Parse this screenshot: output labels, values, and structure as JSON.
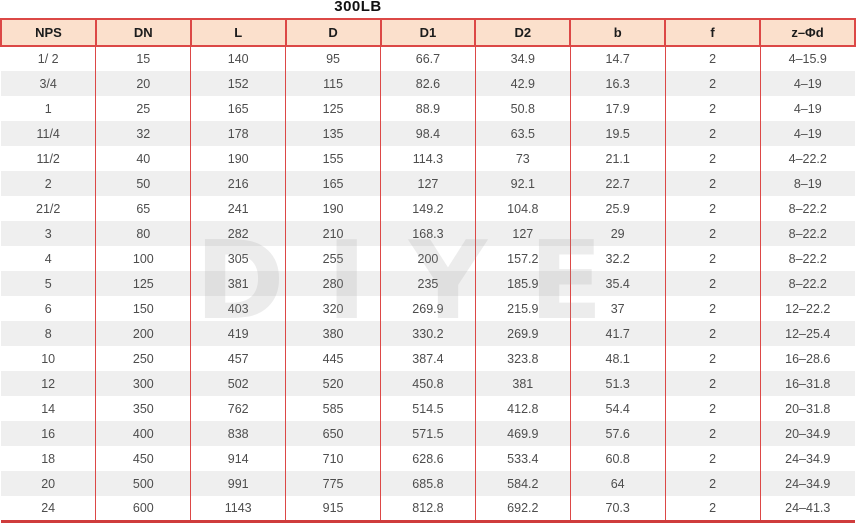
{
  "title": "300LB",
  "watermark": "DIYE",
  "colors": {
    "border_red": "#dc4846",
    "border_red_dark": "#cf3c3c",
    "header_bg": "#fbe0cc",
    "stripe_gray": "#efefef",
    "text_gray": "#4d4d4d"
  },
  "table": {
    "columns": [
      "NPS",
      "DN",
      "L",
      "D",
      "D1",
      "D2",
      "b",
      "f",
      "z–Φd"
    ],
    "rows": [
      [
        "1/ 2",
        "15",
        "140",
        "95",
        "66.7",
        "34.9",
        "14.7",
        "2",
        "4–15.9"
      ],
      [
        "3/4",
        "20",
        "152",
        "115",
        "82.6",
        "42.9",
        "16.3",
        "2",
        "4–19"
      ],
      [
        "1",
        "25",
        "165",
        "125",
        "88.9",
        "50.8",
        "17.9",
        "2",
        "4–19"
      ],
      [
        "11/4",
        "32",
        "178",
        "135",
        "98.4",
        "63.5",
        "19.5",
        "2",
        "4–19"
      ],
      [
        "11/2",
        "40",
        "190",
        "155",
        "114.3",
        "73",
        "21.1",
        "2",
        "4–22.2"
      ],
      [
        "2",
        "50",
        "216",
        "165",
        "127",
        "92.1",
        "22.7",
        "2",
        "8–19"
      ],
      [
        "21/2",
        "65",
        "241",
        "190",
        "149.2",
        "104.8",
        "25.9",
        "2",
        "8–22.2"
      ],
      [
        "3",
        "80",
        "282",
        "210",
        "168.3",
        "127",
        "29",
        "2",
        "8–22.2"
      ],
      [
        "4",
        "100",
        "305",
        "255",
        "200",
        "157.2",
        "32.2",
        "2",
        "8–22.2"
      ],
      [
        "5",
        "125",
        "381",
        "280",
        "235",
        "185.9",
        "35.4",
        "2",
        "8–22.2"
      ],
      [
        "6",
        "150",
        "403",
        "320",
        "269.9",
        "215.9",
        "37",
        "2",
        "12–22.2"
      ],
      [
        "8",
        "200",
        "419",
        "380",
        "330.2",
        "269.9",
        "41.7",
        "2",
        "12–25.4"
      ],
      [
        "10",
        "250",
        "457",
        "445",
        "387.4",
        "323.8",
        "48.1",
        "2",
        "16–28.6"
      ],
      [
        "12",
        "300",
        "502",
        "520",
        "450.8",
        "381",
        "51.3",
        "2",
        "16–31.8"
      ],
      [
        "14",
        "350",
        "762",
        "585",
        "514.5",
        "412.8",
        "54.4",
        "2",
        "20–31.8"
      ],
      [
        "16",
        "400",
        "838",
        "650",
        "571.5",
        "469.9",
        "57.6",
        "2",
        "20–34.9"
      ],
      [
        "18",
        "450",
        "914",
        "710",
        "628.6",
        "533.4",
        "60.8",
        "2",
        "24–34.9"
      ],
      [
        "20",
        "500",
        "991",
        "775",
        "685.8",
        "584.2",
        "64",
        "2",
        "24–34.9"
      ],
      [
        "24",
        "600",
        "1143",
        "915",
        "812.8",
        "692.2",
        "70.3",
        "2",
        "24–41.3"
      ]
    ]
  }
}
